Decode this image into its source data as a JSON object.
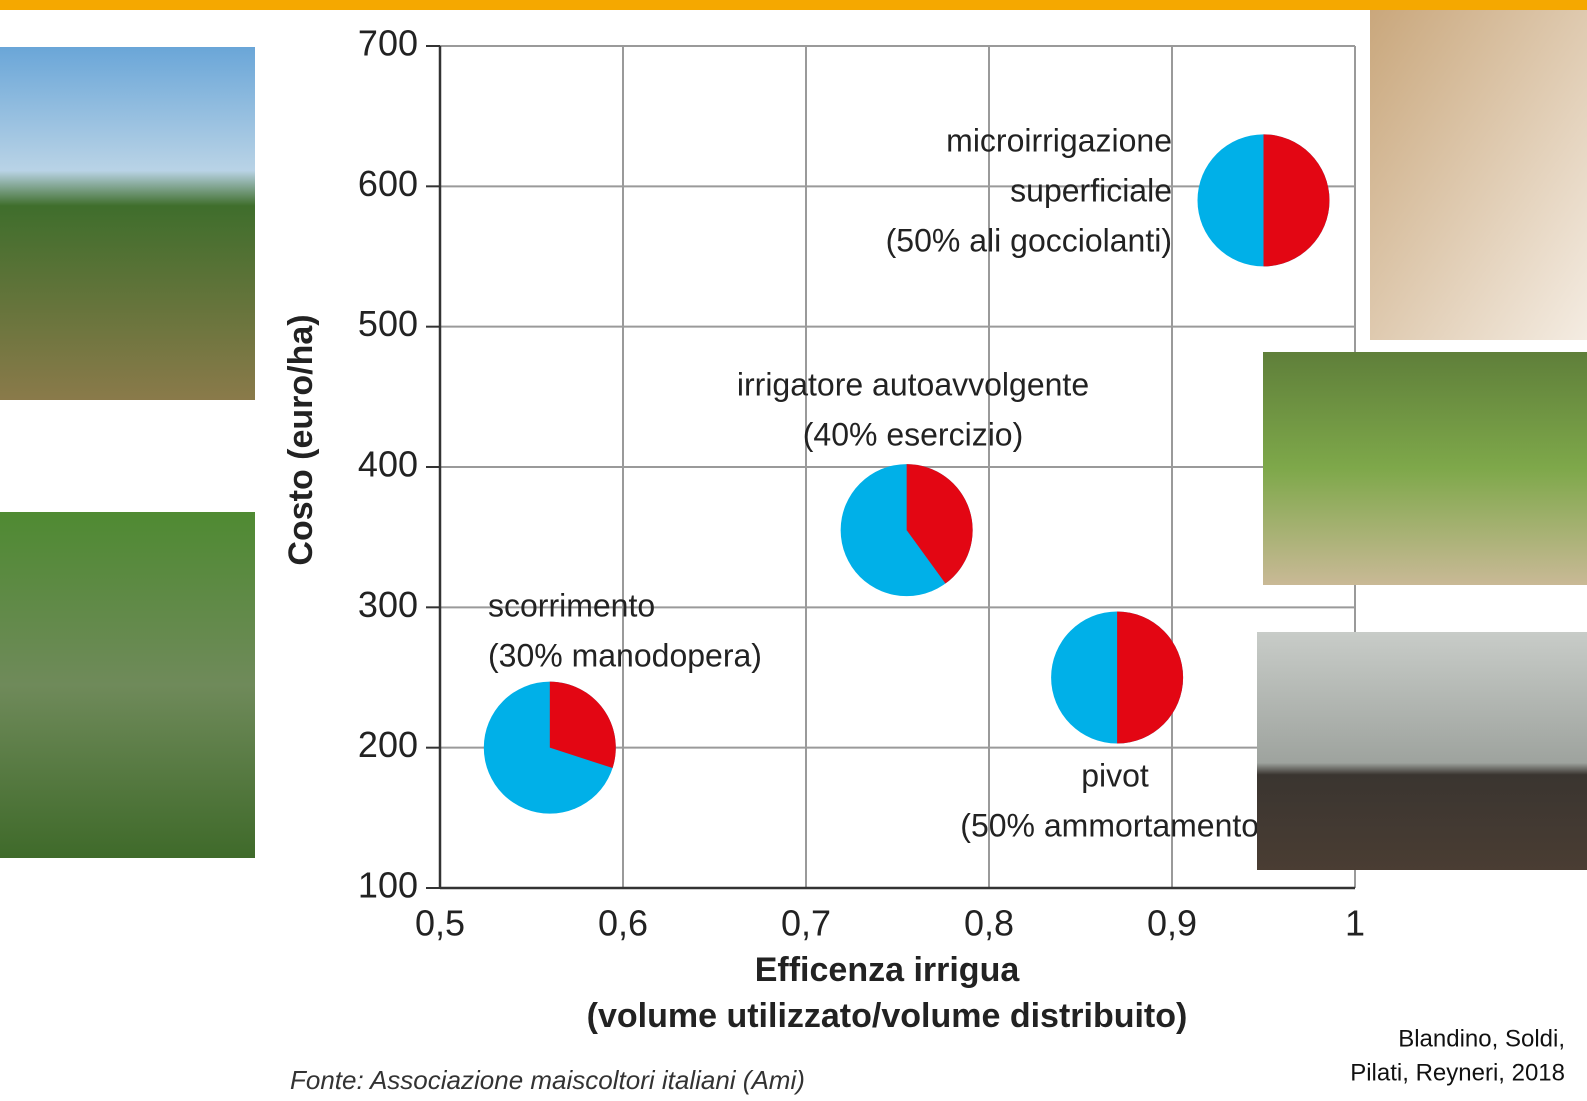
{
  "chart_data": {
    "type": "scatter",
    "xlabel": [
      "Efficenza irrigua",
      "(volume utilizzato/volume distribuito)"
    ],
    "ylabel": "Costo (euro/ha)",
    "xlim": [
      0.5,
      1
    ],
    "xticks": [
      {
        "value": 0.5,
        "label": "0,5"
      },
      {
        "value": 0.6,
        "label": "0,6"
      },
      {
        "value": 0.7,
        "label": "0,7"
      },
      {
        "value": 0.8,
        "label": "0,8"
      },
      {
        "value": 0.9,
        "label": "0,9"
      },
      1
    ],
    "ylim": [
      100,
      700
    ],
    "yticks": [
      100,
      200,
      300,
      400,
      500,
      600,
      700
    ],
    "grid": true,
    "share_color": "#e30613",
    "rest_color": "#00b0e8",
    "points": [
      {
        "label": [
          "scorrimento",
          "(30% manodopera)"
        ],
        "x": 0.56,
        "y": 200,
        "share": 30
      },
      {
        "label": [
          "irrigatore autoavvolgente",
          "(40% esercizio)"
        ],
        "x": 0.755,
        "y": 355,
        "share": 40
      },
      {
        "label": [
          "pivot",
          "(50% ammortamento)"
        ],
        "x": 0.87,
        "y": 250,
        "share": 50
      },
      {
        "label": [
          "microirrigazione",
          "superficiale",
          "(50% ali gocciolanti)"
        ],
        "x": 0.95,
        "y": 590,
        "share": 50
      }
    ],
    "source": "Fonte: Associazione maiscoltori italiani (Ami)",
    "credit": [
      "Blandino, Soldi,",
      "Pilati, Reyneri, 2018"
    ]
  }
}
